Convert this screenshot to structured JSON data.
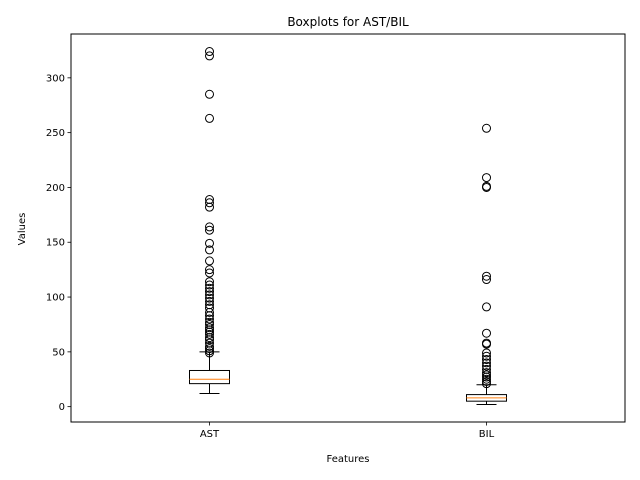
{
  "chart_data": {
    "type": "box",
    "title": "Boxplots for AST/BIL",
    "xlabel": "Features",
    "ylabel": "Values",
    "ylim": [
      -14,
      340
    ],
    "yticks": [
      0,
      50,
      100,
      150,
      200,
      250,
      300
    ],
    "grid": false,
    "categories": [
      "AST",
      "BIL"
    ],
    "series": [
      {
        "category": "AST",
        "whisker_low": 12,
        "q1": 21,
        "median": 25,
        "q3": 33,
        "whisker_high": 50,
        "outliers": [
          49,
          51,
          53,
          55,
          58,
          61,
          63,
          66,
          68,
          70,
          72,
          75,
          77,
          80,
          83,
          86,
          90,
          93,
          96,
          99,
          102,
          105,
          108,
          111,
          114,
          122,
          125,
          133,
          143,
          149,
          161,
          164,
          182,
          186,
          189,
          263,
          285,
          320,
          324
        ]
      },
      {
        "category": "BIL",
        "whisker_low": 2,
        "q1": 5,
        "median": 8,
        "q3": 11,
        "whisker_high": 20,
        "outliers": [
          21,
          23,
          25,
          27,
          29,
          31,
          34,
          37,
          40,
          43,
          46,
          49,
          57,
          58,
          67,
          91,
          116,
          119,
          200,
          201,
          209,
          254
        ]
      }
    ],
    "colors": {
      "box": "#000000",
      "median": "#ff7f0e",
      "outlier": "#000000"
    }
  }
}
